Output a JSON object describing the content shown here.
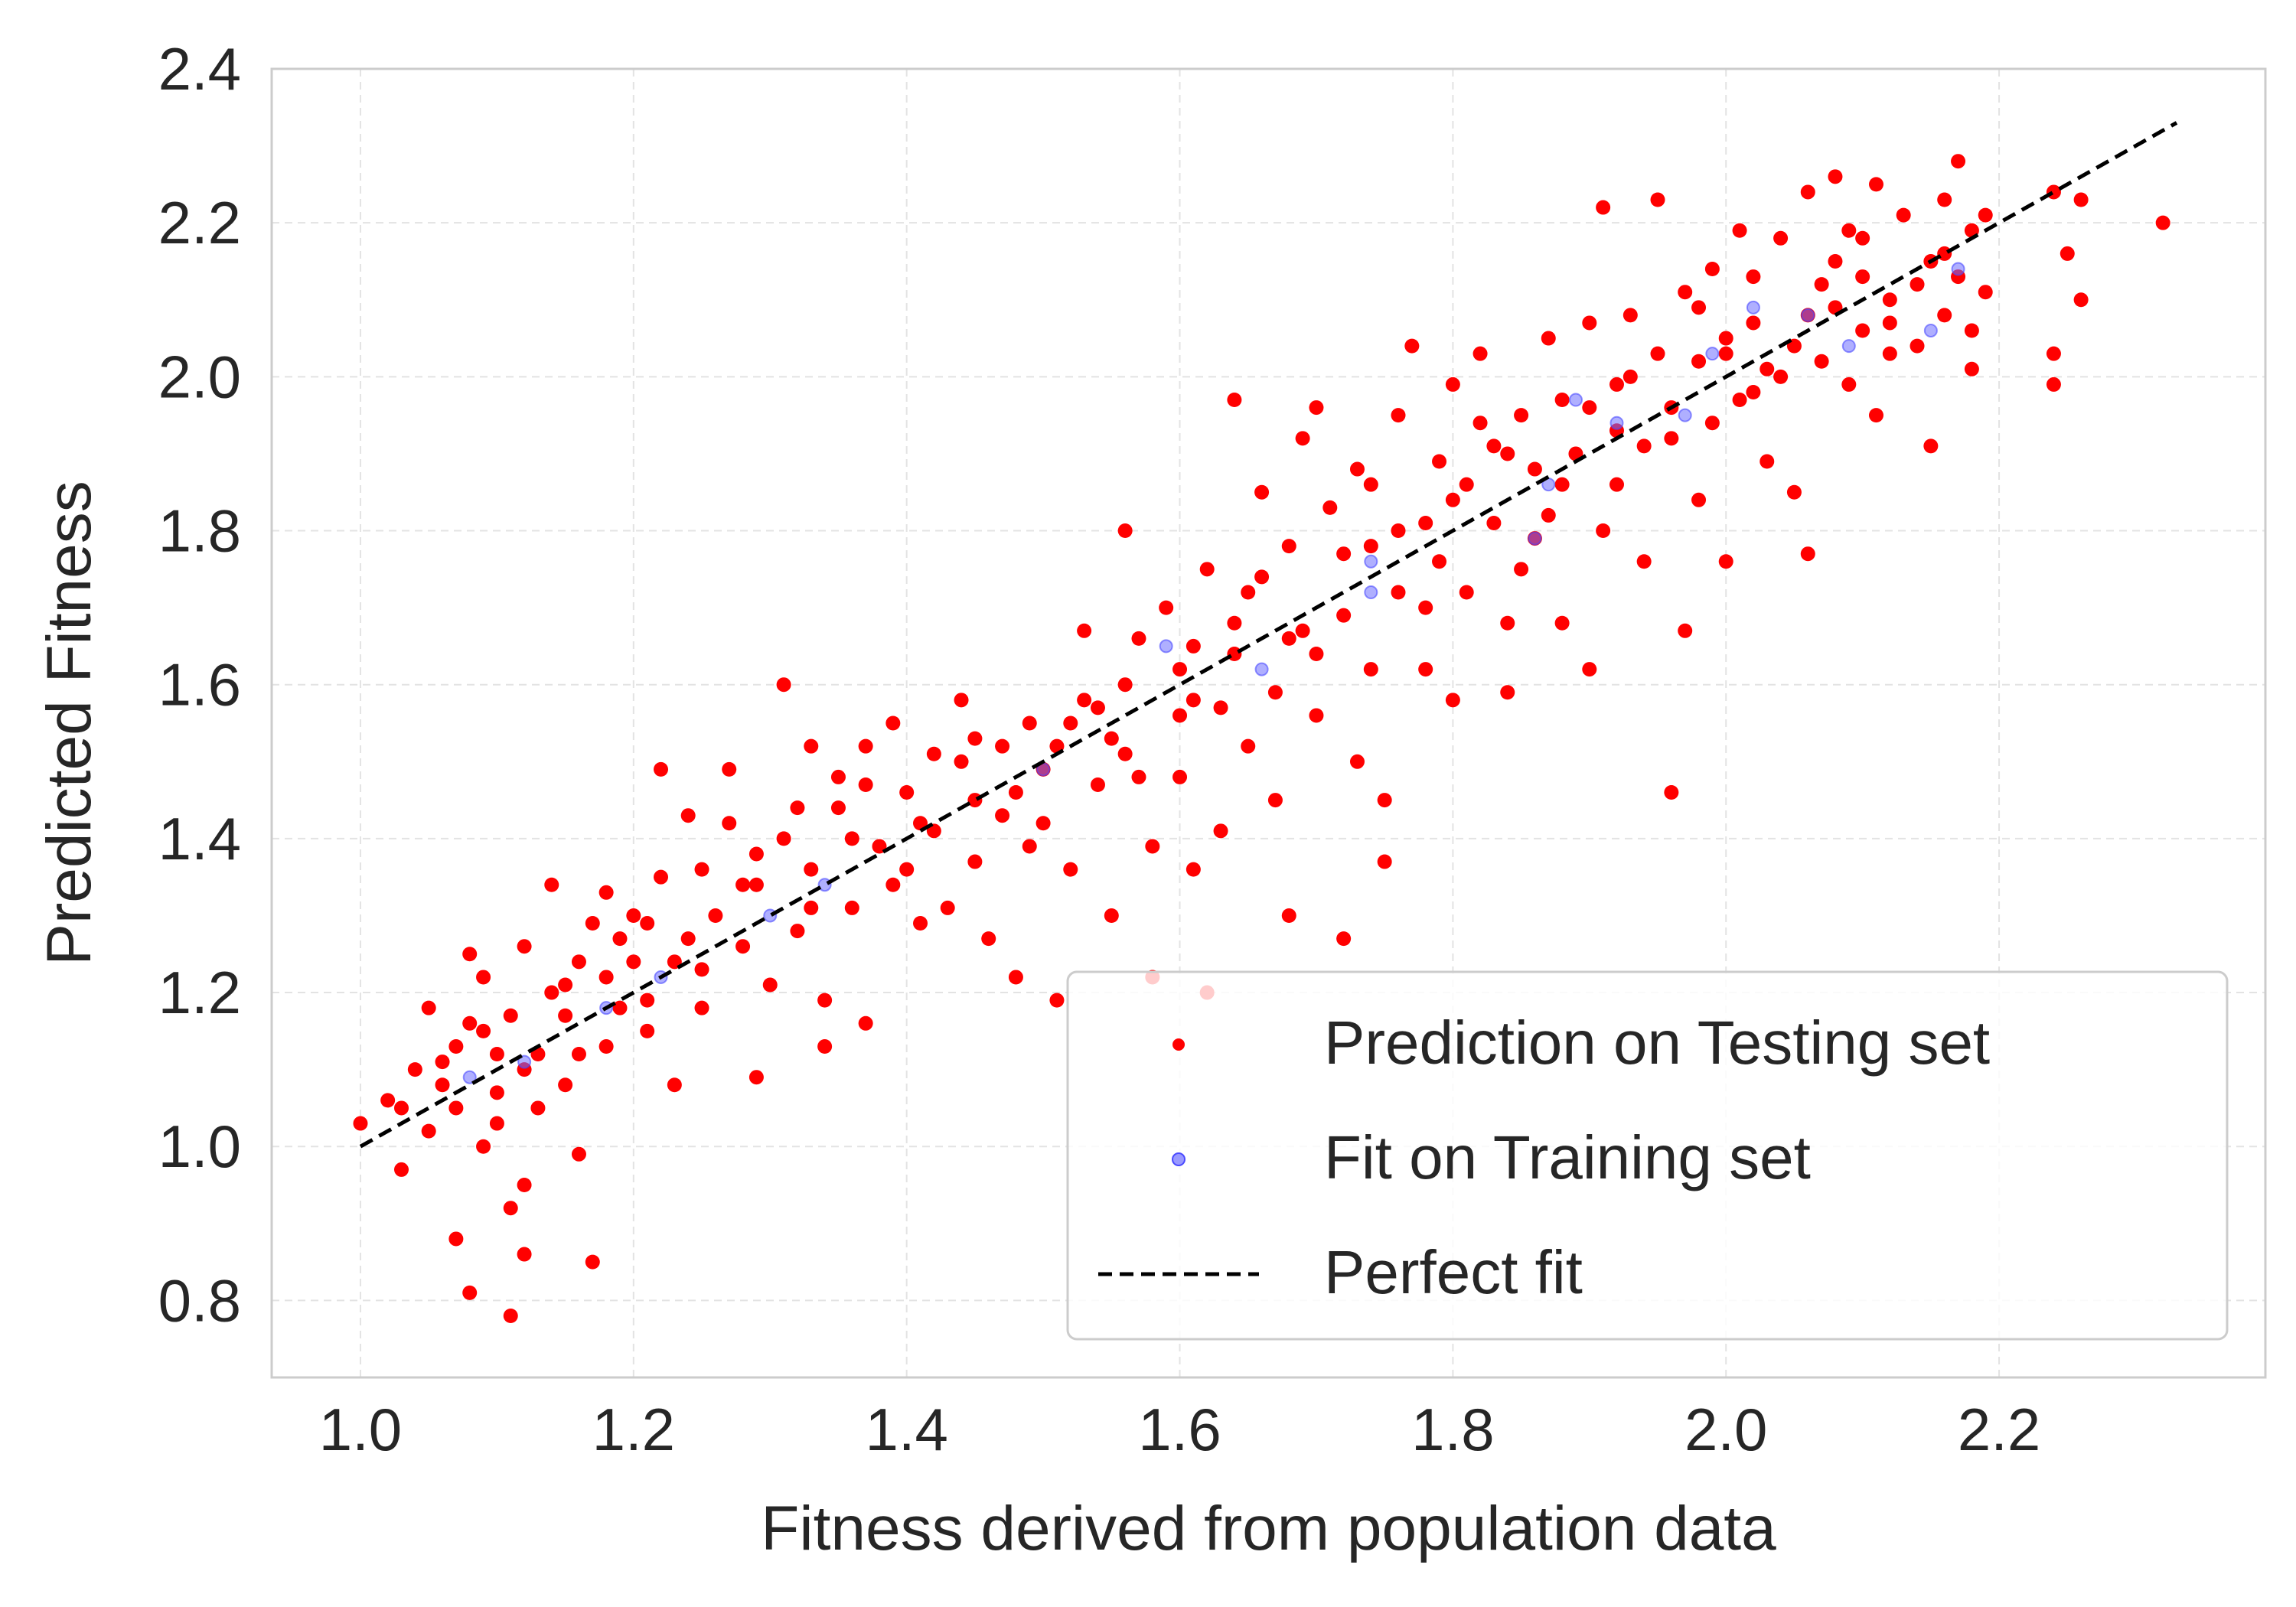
{
  "chart_data": {
    "type": "scatter",
    "title": "",
    "xlabel": "Fitness derived from population data",
    "ylabel": "Predicted Fitness",
    "xlim": [
      0.935,
      2.395
    ],
    "ylim": [
      0.7,
      2.4
    ],
    "xticks": [
      {
        "value": 1.0,
        "label": "1.0"
      },
      {
        "value": 1.2,
        "label": "1.2"
      },
      {
        "value": 1.4,
        "label": "1.4"
      },
      {
        "value": 1.6,
        "label": "1.6"
      },
      {
        "value": 1.8,
        "label": "1.8"
      },
      {
        "value": 2.0,
        "label": "2.0"
      },
      {
        "value": 2.2,
        "label": "2.2"
      }
    ],
    "yticks": [
      {
        "value": 0.8,
        "label": "0.8"
      },
      {
        "value": 1.0,
        "label": "1.0"
      },
      {
        "value": 1.2,
        "label": "1.2"
      },
      {
        "value": 1.4,
        "label": "1.4"
      },
      {
        "value": 1.6,
        "label": "1.6"
      },
      {
        "value": 1.8,
        "label": "1.8"
      },
      {
        "value": 2.0,
        "label": "2.0"
      },
      {
        "value": 2.2,
        "label": "2.2"
      },
      {
        "value": 2.4,
        "label": "2.4"
      }
    ],
    "grid": true,
    "legend_position": "lower-right",
    "series": [
      {
        "name": "Prediction on Testing set",
        "kind": "scatter",
        "color": "#ff0000",
        "points": [
          [
            1.0,
            1.03
          ],
          [
            1.03,
            1.05
          ],
          [
            1.03,
            0.97
          ],
          [
            1.04,
            1.1
          ],
          [
            1.05,
            1.18
          ],
          [
            1.06,
            1.08
          ],
          [
            1.07,
            1.13
          ],
          [
            1.07,
            1.05
          ],
          [
            1.07,
            0.88
          ],
          [
            1.08,
            0.81
          ],
          [
            1.08,
            1.25
          ],
          [
            1.09,
            1.22
          ],
          [
            1.09,
            1.15
          ],
          [
            1.1,
            1.12
          ],
          [
            1.1,
            1.07
          ],
          [
            1.1,
            1.03
          ],
          [
            1.11,
            0.78
          ],
          [
            1.11,
            1.17
          ],
          [
            1.11,
            0.92
          ],
          [
            1.12,
            0.95
          ],
          [
            1.12,
            0.86
          ],
          [
            1.12,
            1.26
          ],
          [
            1.13,
            1.12
          ],
          [
            1.14,
            1.2
          ],
          [
            1.14,
            1.34
          ],
          [
            1.15,
            1.17
          ],
          [
            1.15,
            1.08
          ],
          [
            1.16,
            0.99
          ],
          [
            1.16,
            1.24
          ],
          [
            1.17,
            1.29
          ],
          [
            1.17,
            0.85
          ],
          [
            1.18,
            1.33
          ],
          [
            1.18,
            1.22
          ],
          [
            1.19,
            1.27
          ],
          [
            1.19,
            1.18
          ],
          [
            1.2,
            1.3
          ],
          [
            1.21,
            1.29
          ],
          [
            1.21,
            1.15
          ],
          [
            1.22,
            1.49
          ],
          [
            1.22,
            1.35
          ],
          [
            1.23,
            1.24
          ],
          [
            1.23,
            1.08
          ],
          [
            1.24,
            1.43
          ],
          [
            1.25,
            1.36
          ],
          [
            1.25,
            1.18
          ],
          [
            1.26,
            1.3
          ],
          [
            1.27,
            1.49
          ],
          [
            1.27,
            1.42
          ],
          [
            1.28,
            1.26
          ],
          [
            1.29,
            1.09
          ],
          [
            1.29,
            1.34
          ],
          [
            1.3,
            1.21
          ],
          [
            1.31,
            1.4
          ],
          [
            1.31,
            1.6
          ],
          [
            1.32,
            1.28
          ],
          [
            1.33,
            1.52
          ],
          [
            1.33,
            1.36
          ],
          [
            1.34,
            1.19
          ],
          [
            1.34,
            1.13
          ],
          [
            1.35,
            1.48
          ],
          [
            1.35,
            1.44
          ],
          [
            1.36,
            1.31
          ],
          [
            1.37,
            1.52
          ],
          [
            1.37,
            1.16
          ],
          [
            1.38,
            1.39
          ],
          [
            1.39,
            1.55
          ],
          [
            1.39,
            1.34
          ],
          [
            1.4,
            1.46
          ],
          [
            1.41,
            1.29
          ],
          [
            1.42,
            1.51
          ],
          [
            1.42,
            1.41
          ],
          [
            1.43,
            1.31
          ],
          [
            1.44,
            1.58
          ],
          [
            1.45,
            1.45
          ],
          [
            1.45,
            1.37
          ],
          [
            1.46,
            1.27
          ],
          [
            1.47,
            1.52
          ],
          [
            1.47,
            1.43
          ],
          [
            1.48,
            1.22
          ],
          [
            1.49,
            1.55
          ],
          [
            1.49,
            1.39
          ],
          [
            1.5,
            1.49
          ],
          [
            1.51,
            1.52
          ],
          [
            1.51,
            1.19
          ],
          [
            1.52,
            1.36
          ],
          [
            1.53,
            1.67
          ],
          [
            1.53,
            1.58
          ],
          [
            1.54,
            1.47
          ],
          [
            1.55,
            1.3
          ],
          [
            1.55,
            1.53
          ],
          [
            1.56,
            1.6
          ],
          [
            1.56,
            1.8
          ],
          [
            1.57,
            1.48
          ],
          [
            1.58,
            1.39
          ],
          [
            1.58,
            1.22
          ],
          [
            1.59,
            1.7
          ],
          [
            1.6,
            1.56
          ],
          [
            1.6,
            1.48
          ],
          [
            1.61,
            1.36
          ],
          [
            1.61,
            1.65
          ],
          [
            1.62,
            1.75
          ],
          [
            1.62,
            1.2
          ],
          [
            1.63,
            1.57
          ],
          [
            1.63,
            1.41
          ],
          [
            1.64,
            1.64
          ],
          [
            1.64,
            1.97
          ],
          [
            1.65,
            1.72
          ],
          [
            1.65,
            1.52
          ],
          [
            1.66,
            1.85
          ],
          [
            1.67,
            1.59
          ],
          [
            1.67,
            1.45
          ],
          [
            1.68,
            1.78
          ],
          [
            1.68,
            1.3
          ],
          [
            1.69,
            1.67
          ],
          [
            1.69,
            1.92
          ],
          [
            1.7,
            1.56
          ],
          [
            1.7,
            1.96
          ],
          [
            1.71,
            1.83
          ],
          [
            1.72,
            1.69
          ],
          [
            1.72,
            1.27
          ],
          [
            1.73,
            1.5
          ],
          [
            1.73,
            1.88
          ],
          [
            1.74,
            1.78
          ],
          [
            1.74,
            1.62
          ],
          [
            1.75,
            1.45
          ],
          [
            1.75,
            1.37
          ],
          [
            1.76,
            1.72
          ],
          [
            1.76,
            1.95
          ],
          [
            1.77,
            2.04
          ],
          [
            1.78,
            1.81
          ],
          [
            1.78,
            1.62
          ],
          [
            1.79,
            1.89
          ],
          [
            1.79,
            1.76
          ],
          [
            1.8,
            1.58
          ],
          [
            1.8,
            1.99
          ],
          [
            1.81,
            1.86
          ],
          [
            1.81,
            1.72
          ],
          [
            1.82,
            1.94
          ],
          [
            1.82,
            2.03
          ],
          [
            1.83,
            1.81
          ],
          [
            1.84,
            1.68
          ],
          [
            1.84,
            1.59
          ],
          [
            1.85,
            1.95
          ],
          [
            1.85,
            1.75
          ],
          [
            1.86,
            1.88
          ],
          [
            1.87,
            2.05
          ],
          [
            1.87,
            1.82
          ],
          [
            1.88,
            1.68
          ],
          [
            1.88,
            1.97
          ],
          [
            1.89,
            1.9
          ],
          [
            1.9,
            1.62
          ],
          [
            1.9,
            2.07
          ],
          [
            1.91,
            1.8
          ],
          [
            1.91,
            2.22
          ],
          [
            1.92,
            1.93
          ],
          [
            1.92,
            1.86
          ],
          [
            1.93,
            2.0
          ],
          [
            1.93,
            2.08
          ],
          [
            1.94,
            1.76
          ],
          [
            1.95,
            2.03
          ],
          [
            1.95,
            2.23
          ],
          [
            1.96,
            1.96
          ],
          [
            1.96,
            1.46
          ],
          [
            1.97,
            1.67
          ],
          [
            1.97,
            2.11
          ],
          [
            1.98,
            1.84
          ],
          [
            1.98,
            2.02
          ],
          [
            1.99,
            2.14
          ],
          [
            1.99,
            1.94
          ],
          [
            2.0,
            2.05
          ],
          [
            2.0,
            1.76
          ],
          [
            2.01,
            1.97
          ],
          [
            2.01,
            2.19
          ],
          [
            2.02,
            2.07
          ],
          [
            2.02,
            2.13
          ],
          [
            2.03,
            2.01
          ],
          [
            2.03,
            1.89
          ],
          [
            2.04,
            2.18
          ],
          [
            2.05,
            2.04
          ],
          [
            2.05,
            1.85
          ],
          [
            2.06,
            2.24
          ],
          [
            2.06,
            1.77
          ],
          [
            2.07,
            2.12
          ],
          [
            2.07,
            2.02
          ],
          [
            2.08,
            2.26
          ],
          [
            2.08,
            2.09
          ],
          [
            2.09,
            1.99
          ],
          [
            2.09,
            2.19
          ],
          [
            2.1,
            2.06
          ],
          [
            2.1,
            2.13
          ],
          [
            2.11,
            2.25
          ],
          [
            2.11,
            1.95
          ],
          [
            2.12,
            2.1
          ],
          [
            2.12,
            2.03
          ],
          [
            2.13,
            2.21
          ],
          [
            2.14,
            2.04
          ],
          [
            2.15,
            2.15
          ],
          [
            2.15,
            1.91
          ],
          [
            2.16,
            2.08
          ],
          [
            2.16,
            2.23
          ],
          [
            2.17,
            2.28
          ],
          [
            2.17,
            2.13
          ],
          [
            2.18,
            2.01
          ],
          [
            2.18,
            2.19
          ],
          [
            2.19,
            2.11
          ],
          [
            2.19,
            2.21
          ],
          [
            2.24,
            2.24
          ],
          [
            2.24,
            2.03
          ],
          [
            2.24,
            1.99
          ],
          [
            2.25,
            2.16
          ],
          [
            2.26,
            2.1
          ],
          [
            2.26,
            2.23
          ],
          [
            2.32,
            2.2
          ],
          [
            1.06,
            1.11
          ],
          [
            1.09,
            1.0
          ],
          [
            1.13,
            1.05
          ],
          [
            1.16,
            1.12
          ],
          [
            1.2,
            1.24
          ],
          [
            1.24,
            1.27
          ],
          [
            1.28,
            1.34
          ],
          [
            1.32,
            1.44
          ],
          [
            1.36,
            1.4
          ],
          [
            1.4,
            1.36
          ],
          [
            1.44,
            1.5
          ],
          [
            1.48,
            1.46
          ],
          [
            1.52,
            1.55
          ],
          [
            1.56,
            1.51
          ],
          [
            1.6,
            1.62
          ],
          [
            1.64,
            1.68
          ],
          [
            1.68,
            1.66
          ],
          [
            1.72,
            1.77
          ],
          [
            1.76,
            1.8
          ],
          [
            1.8,
            1.84
          ],
          [
            1.84,
            1.9
          ],
          [
            1.88,
            1.86
          ],
          [
            1.92,
            1.99
          ],
          [
            1.96,
            1.92
          ],
          [
            2.0,
            2.03
          ],
          [
            2.04,
            2.0
          ],
          [
            2.08,
            2.15
          ],
          [
            2.12,
            2.07
          ],
          [
            2.16,
            2.16
          ],
          [
            1.02,
            1.06
          ],
          [
            1.05,
            1.02
          ],
          [
            1.08,
            1.16
          ],
          [
            1.12,
            1.1
          ],
          [
            1.15,
            1.21
          ],
          [
            1.18,
            1.13
          ],
          [
            1.21,
            1.19
          ],
          [
            1.25,
            1.23
          ],
          [
            1.29,
            1.38
          ],
          [
            1.33,
            1.31
          ],
          [
            1.37,
            1.47
          ],
          [
            1.41,
            1.42
          ],
          [
            1.45,
            1.53
          ],
          [
            1.5,
            1.42
          ],
          [
            1.54,
            1.57
          ],
          [
            1.57,
            1.66
          ],
          [
            1.61,
            1.58
          ],
          [
            1.66,
            1.74
          ],
          [
            1.7,
            1.64
          ],
          [
            1.74,
            1.86
          ],
          [
            1.78,
            1.7
          ],
          [
            1.83,
            1.91
          ],
          [
            1.86,
            1.79
          ],
          [
            1.9,
            1.96
          ],
          [
            1.94,
            1.91
          ],
          [
            1.98,
            2.09
          ],
          [
            2.02,
            1.98
          ],
          [
            2.06,
            2.08
          ],
          [
            2.1,
            2.18
          ],
          [
            2.14,
            2.12
          ],
          [
            2.18,
            2.06
          ]
        ]
      },
      {
        "name": "Fit on Training set",
        "kind": "scatter",
        "color": "#6d6dff",
        "points": [
          [
            1.08,
            1.09
          ],
          [
            1.12,
            1.11
          ],
          [
            1.18,
            1.18
          ],
          [
            1.22,
            1.22
          ],
          [
            1.3,
            1.3
          ],
          [
            1.34,
            1.34
          ],
          [
            1.5,
            1.49
          ],
          [
            1.59,
            1.65
          ],
          [
            1.66,
            1.62
          ],
          [
            1.74,
            1.72
          ],
          [
            1.74,
            1.76
          ],
          [
            1.86,
            1.79
          ],
          [
            1.87,
            1.86
          ],
          [
            1.89,
            1.97
          ],
          [
            1.92,
            1.94
          ],
          [
            1.97,
            1.95
          ],
          [
            1.99,
            2.03
          ],
          [
            2.02,
            2.09
          ],
          [
            2.06,
            2.08
          ],
          [
            2.09,
            2.04
          ],
          [
            2.15,
            2.06
          ],
          [
            2.17,
            2.14
          ]
        ]
      }
    ],
    "reference_line": {
      "name": "Perfect fit",
      "style": "dashed",
      "color": "#000000",
      "x": [
        1.0,
        2.33
      ],
      "y": [
        1.0,
        2.33
      ]
    }
  }
}
